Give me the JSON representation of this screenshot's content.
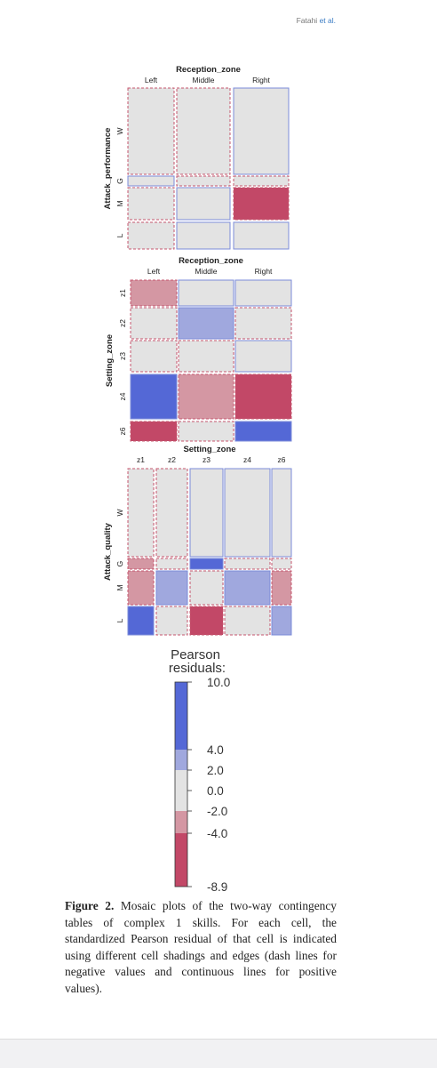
{
  "header": {
    "authors": "Fatahi",
    "etal": "et al."
  },
  "caption": {
    "label": "Figure 2.",
    "text": "Mosaic plots of the two-way contingency tables of complex 1 skills. For each cell, the standardized Pearson residual of that cell is indicated using different cell shadings and edges (dash lines for negative values and continuous lines for positive values)."
  },
  "colors": {
    "strong_pos": "#5468d6",
    "mod_pos": "#a0a8de",
    "neutral": "#e3e3e3",
    "mod_neg": "#d497a3",
    "strong_neg": "#c24867",
    "pos_edge": "#7b8bd8",
    "neg_edge": "#c4566e"
  },
  "chart_data": [
    {
      "type": "mosaic",
      "title": "",
      "xlabel": "Reception_zone",
      "ylabel": "Attack_performance",
      "columns": [
        "Left",
        "Middle",
        "Right"
      ],
      "rows": [
        "W",
        "G",
        "M",
        "L"
      ],
      "residual_class": [
        [
          "neg",
          "neg",
          "pos"
        ],
        [
          "pos",
          "neg",
          "neg"
        ],
        [
          "neg",
          "pos",
          "strong_neg"
        ],
        [
          "neg",
          "pos",
          "pos"
        ]
      ]
    },
    {
      "type": "mosaic",
      "title": "",
      "xlabel": "Reception_zone",
      "ylabel": "Setting_zone",
      "columns": [
        "Left",
        "Middle",
        "Right"
      ],
      "rows": [
        "z1",
        "z2",
        "z3",
        "z4",
        "z6"
      ],
      "residual_class": [
        [
          "mod_neg",
          "pos",
          "pos"
        ],
        [
          "neg",
          "mod_pos",
          "neg"
        ],
        [
          "neg",
          "neg",
          "pos"
        ],
        [
          "strong_pos",
          "mod_neg",
          "strong_neg"
        ],
        [
          "strong_neg",
          "neg",
          "strong_pos"
        ]
      ]
    },
    {
      "type": "mosaic",
      "title": "",
      "xlabel": "Setting_zone",
      "ylabel": "Attack_quality",
      "columns": [
        "z1",
        "z2",
        "z3",
        "z4",
        "z6"
      ],
      "rows": [
        "W",
        "G",
        "M",
        "L"
      ],
      "residual_class": [
        [
          "neg",
          "neg",
          "pos",
          "pos",
          "pos"
        ],
        [
          "mod_neg",
          "neg",
          "strong_pos",
          "neg",
          "neg"
        ],
        [
          "mod_neg",
          "mod_pos",
          "neg",
          "mod_pos",
          "mod_neg"
        ],
        [
          "strong_pos",
          "neg",
          "strong_neg",
          "neg",
          "mod_pos"
        ]
      ]
    }
  ],
  "legend": {
    "title_line1": "Pearson",
    "title_line2": "residuals:",
    "ticks": [
      "10.0",
      "4.0",
      "2.0",
      "0.0",
      "-2.0",
      "-4.0",
      "-8.9"
    ],
    "range": [
      -8.9,
      10.0
    ],
    "segments": [
      {
        "from": 4.0,
        "to": 10.0,
        "class": "strong_pos"
      },
      {
        "from": 2.0,
        "to": 4.0,
        "class": "mod_pos"
      },
      {
        "from": -2.0,
        "to": 2.0,
        "class": "neutral"
      },
      {
        "from": -4.0,
        "to": -2.0,
        "class": "mod_neg"
      },
      {
        "from": -8.9,
        "to": -4.0,
        "class": "strong_neg"
      }
    ]
  }
}
